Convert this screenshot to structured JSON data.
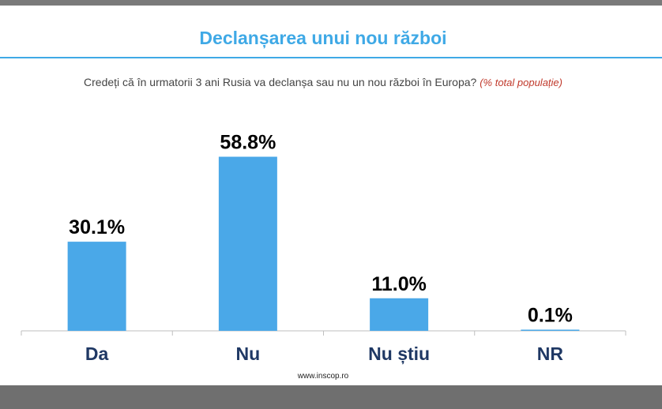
{
  "header": {
    "title": "Declanșarea unui nou război",
    "question": "Credeți că în urmatorii 3 ani Rusia va declanșa sau nu un nou război în Europa?",
    "question_note": "(% total populație)"
  },
  "footer": {
    "source": "www.inscop.ro"
  },
  "colors": {
    "bar": "#4aa8e8",
    "title": "#3fa9e6",
    "label": "#1f3864",
    "value": "#000000"
  },
  "chart_data": {
    "type": "bar",
    "title": "Declanșarea unui nou război",
    "categories": [
      "Da",
      "Nu",
      "Nu știu",
      "NR"
    ],
    "values": [
      30.1,
      58.8,
      11.0,
      0.1
    ],
    "value_labels": [
      "30.1%",
      "58.8%",
      "11.0%",
      "0.1%"
    ],
    "xlabel": "",
    "ylabel": "",
    "ylim": [
      0,
      80
    ],
    "grid": false,
    "legend": "none"
  }
}
